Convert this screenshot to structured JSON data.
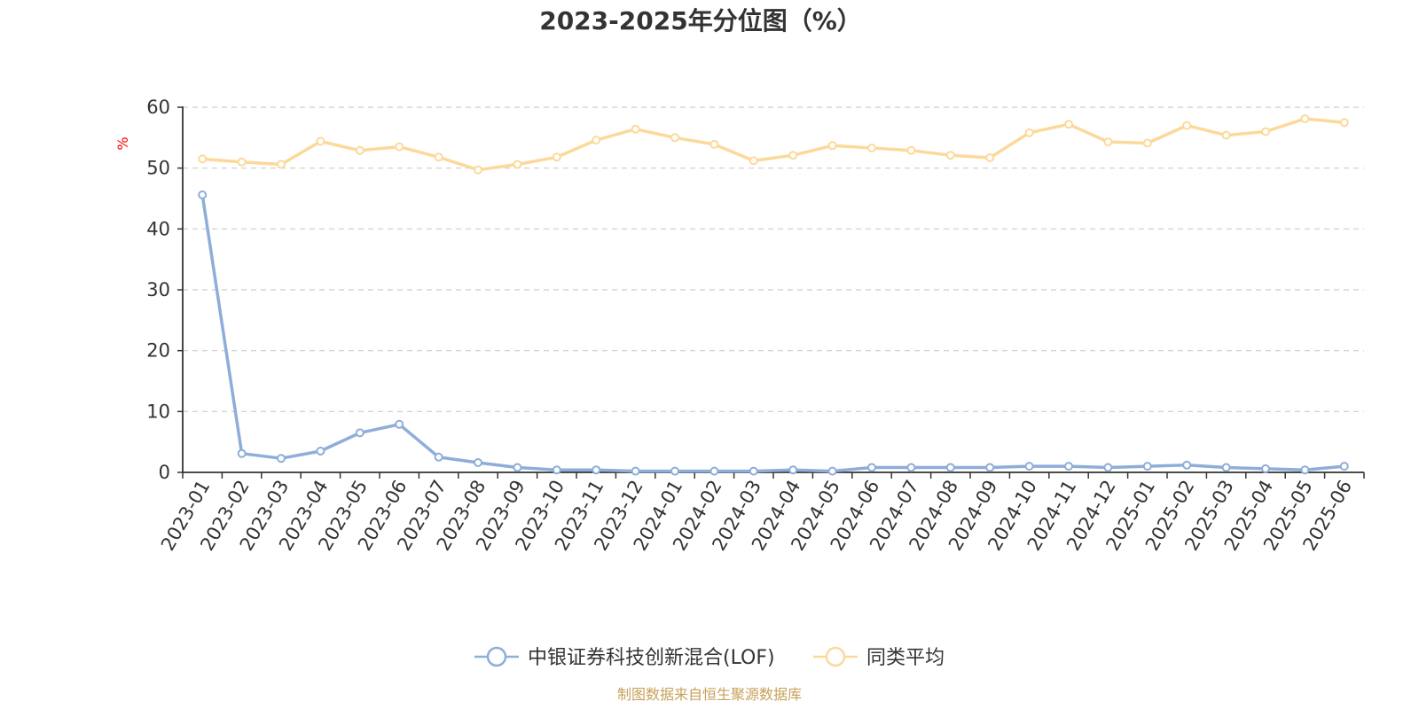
{
  "chart_data": {
    "type": "line",
    "title": "2023-2025年分位图（%）",
    "ylabel": "%",
    "xlabel": "",
    "ylim": [
      0,
      60
    ],
    "yticks": [
      0,
      10,
      20,
      30,
      40,
      50,
      60
    ],
    "grid": true,
    "legend_position": "bottom",
    "categories": [
      "2023-01",
      "2023-02",
      "2023-03",
      "2023-04",
      "2023-05",
      "2023-06",
      "2023-07",
      "2023-08",
      "2023-09",
      "2023-10",
      "2023-11",
      "2023-12",
      "2024-01",
      "2024-02",
      "2024-03",
      "2024-04",
      "2024-05",
      "2024-06",
      "2024-07",
      "2024-08",
      "2024-09",
      "2024-10",
      "2024-11",
      "2024-12",
      "2025-01",
      "2025-02",
      "2025-03",
      "2025-04",
      "2025-05",
      "2025-06"
    ],
    "series": [
      {
        "name": "中银证券科技创新混合(LOF)",
        "color": "#8eadd9",
        "values": [
          45.6,
          3.1,
          2.3,
          3.5,
          6.5,
          7.9,
          2.5,
          1.6,
          0.8,
          0.4,
          0.4,
          0.2,
          0.2,
          0.2,
          0.2,
          0.4,
          0.2,
          0.8,
          0.8,
          0.8,
          0.8,
          1.0,
          1.0,
          0.8,
          1.0,
          1.2,
          0.8,
          0.6,
          0.4,
          1.0
        ]
      },
      {
        "name": "同类平均",
        "color": "#fcd99a",
        "values": [
          51.5,
          51.0,
          50.6,
          54.4,
          52.9,
          53.5,
          51.8,
          49.7,
          50.6,
          51.8,
          54.6,
          56.4,
          55.0,
          53.9,
          51.2,
          52.1,
          53.7,
          53.3,
          52.9,
          52.1,
          51.7,
          55.8,
          57.2,
          54.3,
          54.1,
          57.0,
          55.4,
          56.0,
          58.1,
          57.5
        ]
      }
    ]
  },
  "source": "制图数据来自恒生聚源数据库"
}
